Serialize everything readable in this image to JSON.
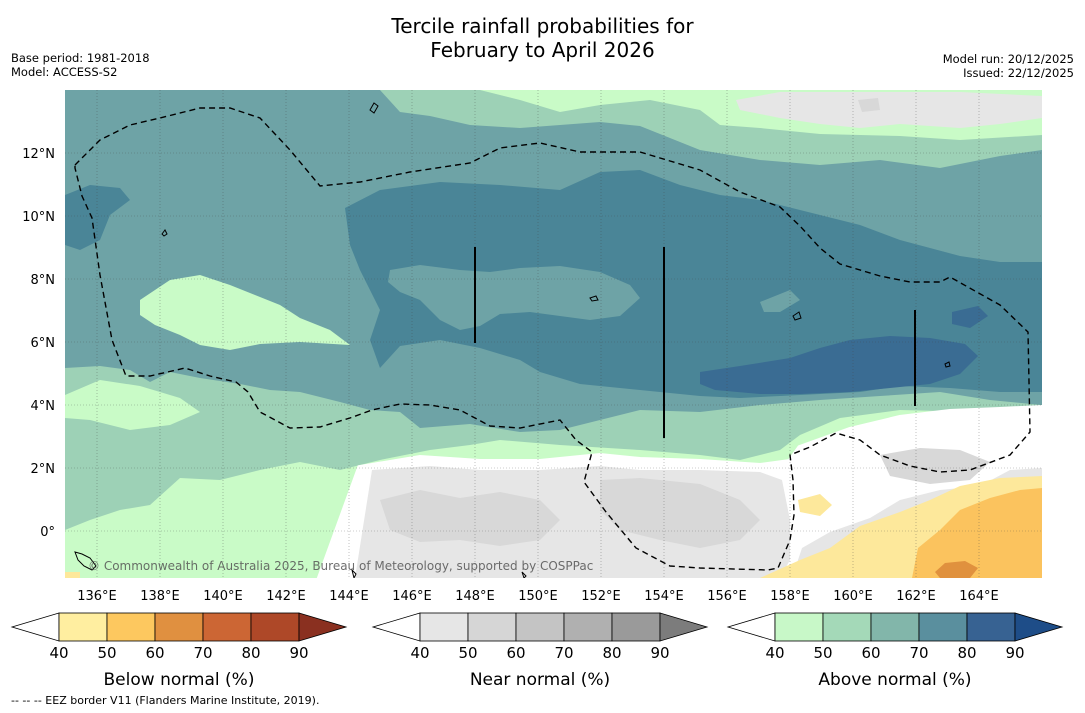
{
  "title": {
    "line1": "Tercile rainfall probabilities for",
    "line2": "February to April 2026"
  },
  "meta_left": {
    "base_period": "Base period: 1981-2018",
    "model": "Model: ACCESS-S2"
  },
  "meta_right": {
    "model_run": "Model run: 20/12/2025",
    "issued": "Issued: 22/12/2025"
  },
  "map": {
    "lat_labels": [
      "12°N",
      "10°N",
      "8°N",
      "6°N",
      "4°N",
      "2°N",
      "0°"
    ],
    "lon_labels": [
      "136°E",
      "138°E",
      "140°E",
      "142°E",
      "144°E",
      "146°E",
      "148°E",
      "150°E",
      "152°E",
      "154°E",
      "156°E",
      "158°E",
      "160°E",
      "162°E",
      "164°E"
    ],
    "copyright": "© Commonwealth of Australia 2025, Bureau of Meteorology, supported by COSPPac",
    "colors": {
      "ocean_bg": "#c9fbc7",
      "above_50": "#9dd1b6",
      "above_60": "#6ea3a6",
      "above_70": "#4a8597",
      "above_80": "#3a6c93",
      "above_90": "#30598e",
      "near_40": "#e6e6e6",
      "near_50": "#d8d8d8",
      "below_50": "#fde89b",
      "below_60": "#fbc35e",
      "below_70": "#e0913e"
    }
  },
  "colorbars": [
    {
      "name": "below",
      "label": "Below normal (%)",
      "ticks": [
        "40",
        "50",
        "60",
        "70",
        "80",
        "90"
      ],
      "colors": [
        "#ffeea0",
        "#fdc85f",
        "#e09040",
        "#cc6634",
        "#ae4828",
        "#8a3020"
      ]
    },
    {
      "name": "near",
      "label": "Near normal (%)",
      "ticks": [
        "40",
        "50",
        "60",
        "70",
        "80",
        "90"
      ],
      "colors": [
        "#e6e6e6",
        "#d6d6d6",
        "#c4c4c4",
        "#b0b0b0",
        "#9a9a9a",
        "#7c7c7c"
      ]
    },
    {
      "name": "above",
      "label": "Above normal (%)",
      "ticks": [
        "40",
        "50",
        "60",
        "70",
        "80",
        "90"
      ],
      "colors": [
        "#c8f8c8",
        "#a4d9b8",
        "#82b6aa",
        "#5a8f9e",
        "#376292",
        "#1e4d88"
      ]
    }
  ],
  "footer": "--  --  -- EEZ border V11 (Flanders Marine Institute, 2019)."
}
